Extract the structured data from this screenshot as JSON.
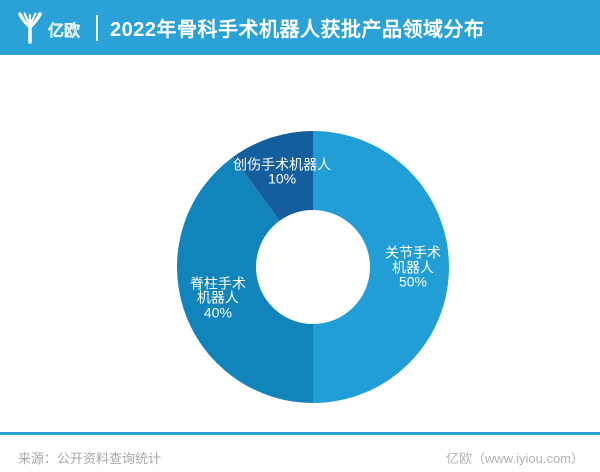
{
  "header": {
    "brand": "亿欧",
    "title": "2022年骨科手术机器人获批产品领域分布"
  },
  "chart_data": {
    "type": "pie",
    "subtype": "donut",
    "title": "2022年骨科手术机器人获批产品领域分布",
    "unit": "%",
    "start_angle_deg": 0,
    "direction": "clockwise",
    "slices": [
      {
        "label": "关节手术机器人",
        "value": 50,
        "color": "#219ED5",
        "label_lines": [
          "关节手术",
          "机器人",
          "50%"
        ]
      },
      {
        "label": "脊柱手术机器人",
        "value": 40,
        "color": "#1184BC",
        "label_lines": [
          "脊柱手术",
          "机器人",
          "40%"
        ]
      },
      {
        "label": "创伤手术机器人",
        "value": 10,
        "color": "#155E9E",
        "label_lines": [
          "创伤手术机器人",
          "10%"
        ]
      }
    ]
  },
  "footer": {
    "source": "来源：公开资料查询统计",
    "credit": "亿欧（www.iyiou.com）"
  },
  "colors": {
    "header_bg": "#2AA2D8",
    "footer_rule": "#2AA2D8",
    "label_text": "#FFFFFF"
  }
}
